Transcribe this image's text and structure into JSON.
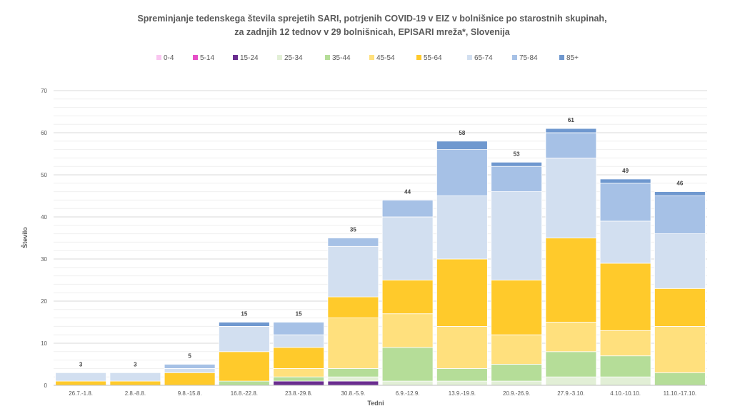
{
  "chart_data": {
    "type": "bar",
    "stacked": true,
    "title_line1": "Spreminjanje tedenskega števila sprejetih SARI, potrjenih COVID-19 v EIZ v bolnišnice po starostnih skupinah,",
    "title_line2": "za zadnjih 12 tednov v 29 bolnišnicah, EPISARI mreža*, Slovenija",
    "xlabel": "Tedni",
    "ylabel": "Število",
    "ylim": [
      0,
      70
    ],
    "yticks": [
      0,
      10,
      20,
      30,
      40,
      50,
      60,
      70
    ],
    "grid": true,
    "legend_position": "top",
    "categories": [
      "26.7.-1.8.",
      "2.8.-8.8.",
      "9.8.-15.8.",
      "16.8.-22.8.",
      "23.8.-29.8.",
      "30.8.-5.9.",
      "6.9.-12.9.",
      "13.9.-19.9.",
      "20.9.-26.9.",
      "27.9.-3.10.",
      "4.10.-10.10.",
      "11.10.-17.10."
    ],
    "totals": [
      3,
      3,
      5,
      15,
      15,
      35,
      44,
      58,
      53,
      61,
      49,
      46
    ],
    "series": [
      {
        "name": "0-4",
        "color": "#f9c6f0",
        "values": [
          0,
          0,
          0,
          0,
          0,
          0,
          0,
          0,
          0,
          0,
          0,
          0
        ]
      },
      {
        "name": "5-14",
        "color": "#e64fc7",
        "values": [
          0,
          0,
          0,
          0,
          0,
          0,
          0,
          0,
          0,
          0,
          0,
          0
        ]
      },
      {
        "name": "15-24",
        "color": "#6a2d8f",
        "values": [
          0,
          0,
          0,
          0,
          1,
          1,
          0,
          0,
          0,
          0,
          0,
          0
        ]
      },
      {
        "name": "25-34",
        "color": "#e2efd6",
        "values": [
          0,
          0,
          0,
          0,
          0,
          1,
          1,
          1,
          1,
          2,
          2,
          0
        ]
      },
      {
        "name": "35-44",
        "color": "#b5dd98",
        "values": [
          0,
          0,
          0,
          1,
          1,
          2,
          8,
          3,
          4,
          6,
          5,
          3
        ]
      },
      {
        "name": "45-54",
        "color": "#ffe07d",
        "values": [
          0,
          0,
          0,
          0,
          2,
          12,
          8,
          10,
          7,
          7,
          6,
          11
        ]
      },
      {
        "name": "55-64",
        "color": "#ffca2b",
        "values": [
          1,
          1,
          3,
          7,
          5,
          5,
          8,
          16,
          13,
          20,
          16,
          9
        ]
      },
      {
        "name": "65-74",
        "color": "#d2dff0",
        "values": [
          2,
          2,
          1,
          6,
          3,
          12,
          15,
          15,
          21,
          19,
          10,
          13
        ]
      },
      {
        "name": "75-84",
        "color": "#a6c1e6",
        "values": [
          0,
          0,
          1,
          0,
          3,
          2,
          4,
          11,
          6,
          6,
          9,
          9
        ]
      },
      {
        "name": "85+",
        "color": "#6f98cf",
        "values": [
          0,
          0,
          0,
          1,
          0,
          0,
          0,
          2,
          1,
          1,
          1,
          1
        ]
      }
    ]
  }
}
